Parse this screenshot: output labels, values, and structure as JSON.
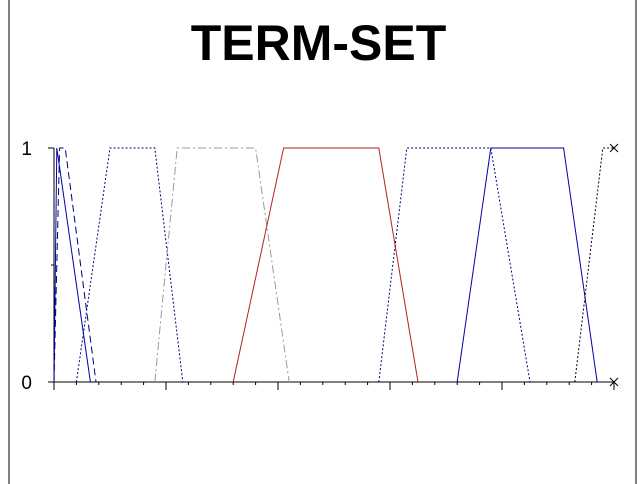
{
  "chart_data": {
    "type": "line",
    "title": "TERM-SET",
    "xlabel": "",
    "ylabel": "",
    "xlim": [
      0,
      100
    ],
    "ylim": [
      0,
      1
    ],
    "y_ticks": [
      "0",
      "1"
    ],
    "x_tick_values": [
      0,
      2,
      4,
      6,
      8,
      10,
      12,
      14,
      16,
      18,
      20,
      22,
      24,
      26,
      28,
      30,
      32,
      34,
      36,
      38,
      40,
      42,
      44,
      46,
      48,
      50,
      52,
      54,
      56,
      58,
      60,
      62,
      64,
      66,
      68,
      70,
      72,
      74,
      76,
      78,
      80,
      82,
      84,
      86,
      88,
      90,
      92,
      94,
      96,
      98,
      100
    ],
    "x_major_ticks": [
      0,
      20,
      40,
      60,
      80,
      100
    ],
    "grid": false,
    "legend": "none",
    "series": [
      {
        "style": "solid",
        "color": "#0000aa",
        "x": [
          0,
          0.5,
          6.5
        ],
        "y": [
          0,
          1,
          0
        ]
      },
      {
        "style": "dashed",
        "color": "#000080",
        "x": [
          0,
          1,
          2,
          7.5
        ],
        "y": [
          0,
          1,
          1,
          0
        ]
      },
      {
        "style": "dotted",
        "color": "#000080",
        "x": [
          4,
          10,
          18,
          23
        ],
        "y": [
          0,
          1,
          1,
          0
        ]
      },
      {
        "style": "dashdot",
        "color": "#999999",
        "x": [
          18,
          22,
          36,
          42
        ],
        "y": [
          0,
          1,
          1,
          0
        ]
      },
      {
        "style": "solid",
        "color": "#b22222",
        "x": [
          32,
          41,
          58,
          65
        ],
        "y": [
          0,
          1,
          1,
          0
        ]
      },
      {
        "style": "dotted",
        "color": "#000080",
        "x": [
          58,
          63,
          78,
          85
        ],
        "y": [
          0,
          1,
          1,
          0
        ]
      },
      {
        "style": "solid",
        "color": "#0000aa",
        "x": [
          72,
          78,
          91,
          97
        ],
        "y": [
          0,
          1,
          1,
          0
        ]
      },
      {
        "style": "dotted",
        "color": "#000000",
        "x": [
          93,
          98,
          100
        ],
        "y": [
          0,
          1,
          1
        ]
      }
    ]
  }
}
